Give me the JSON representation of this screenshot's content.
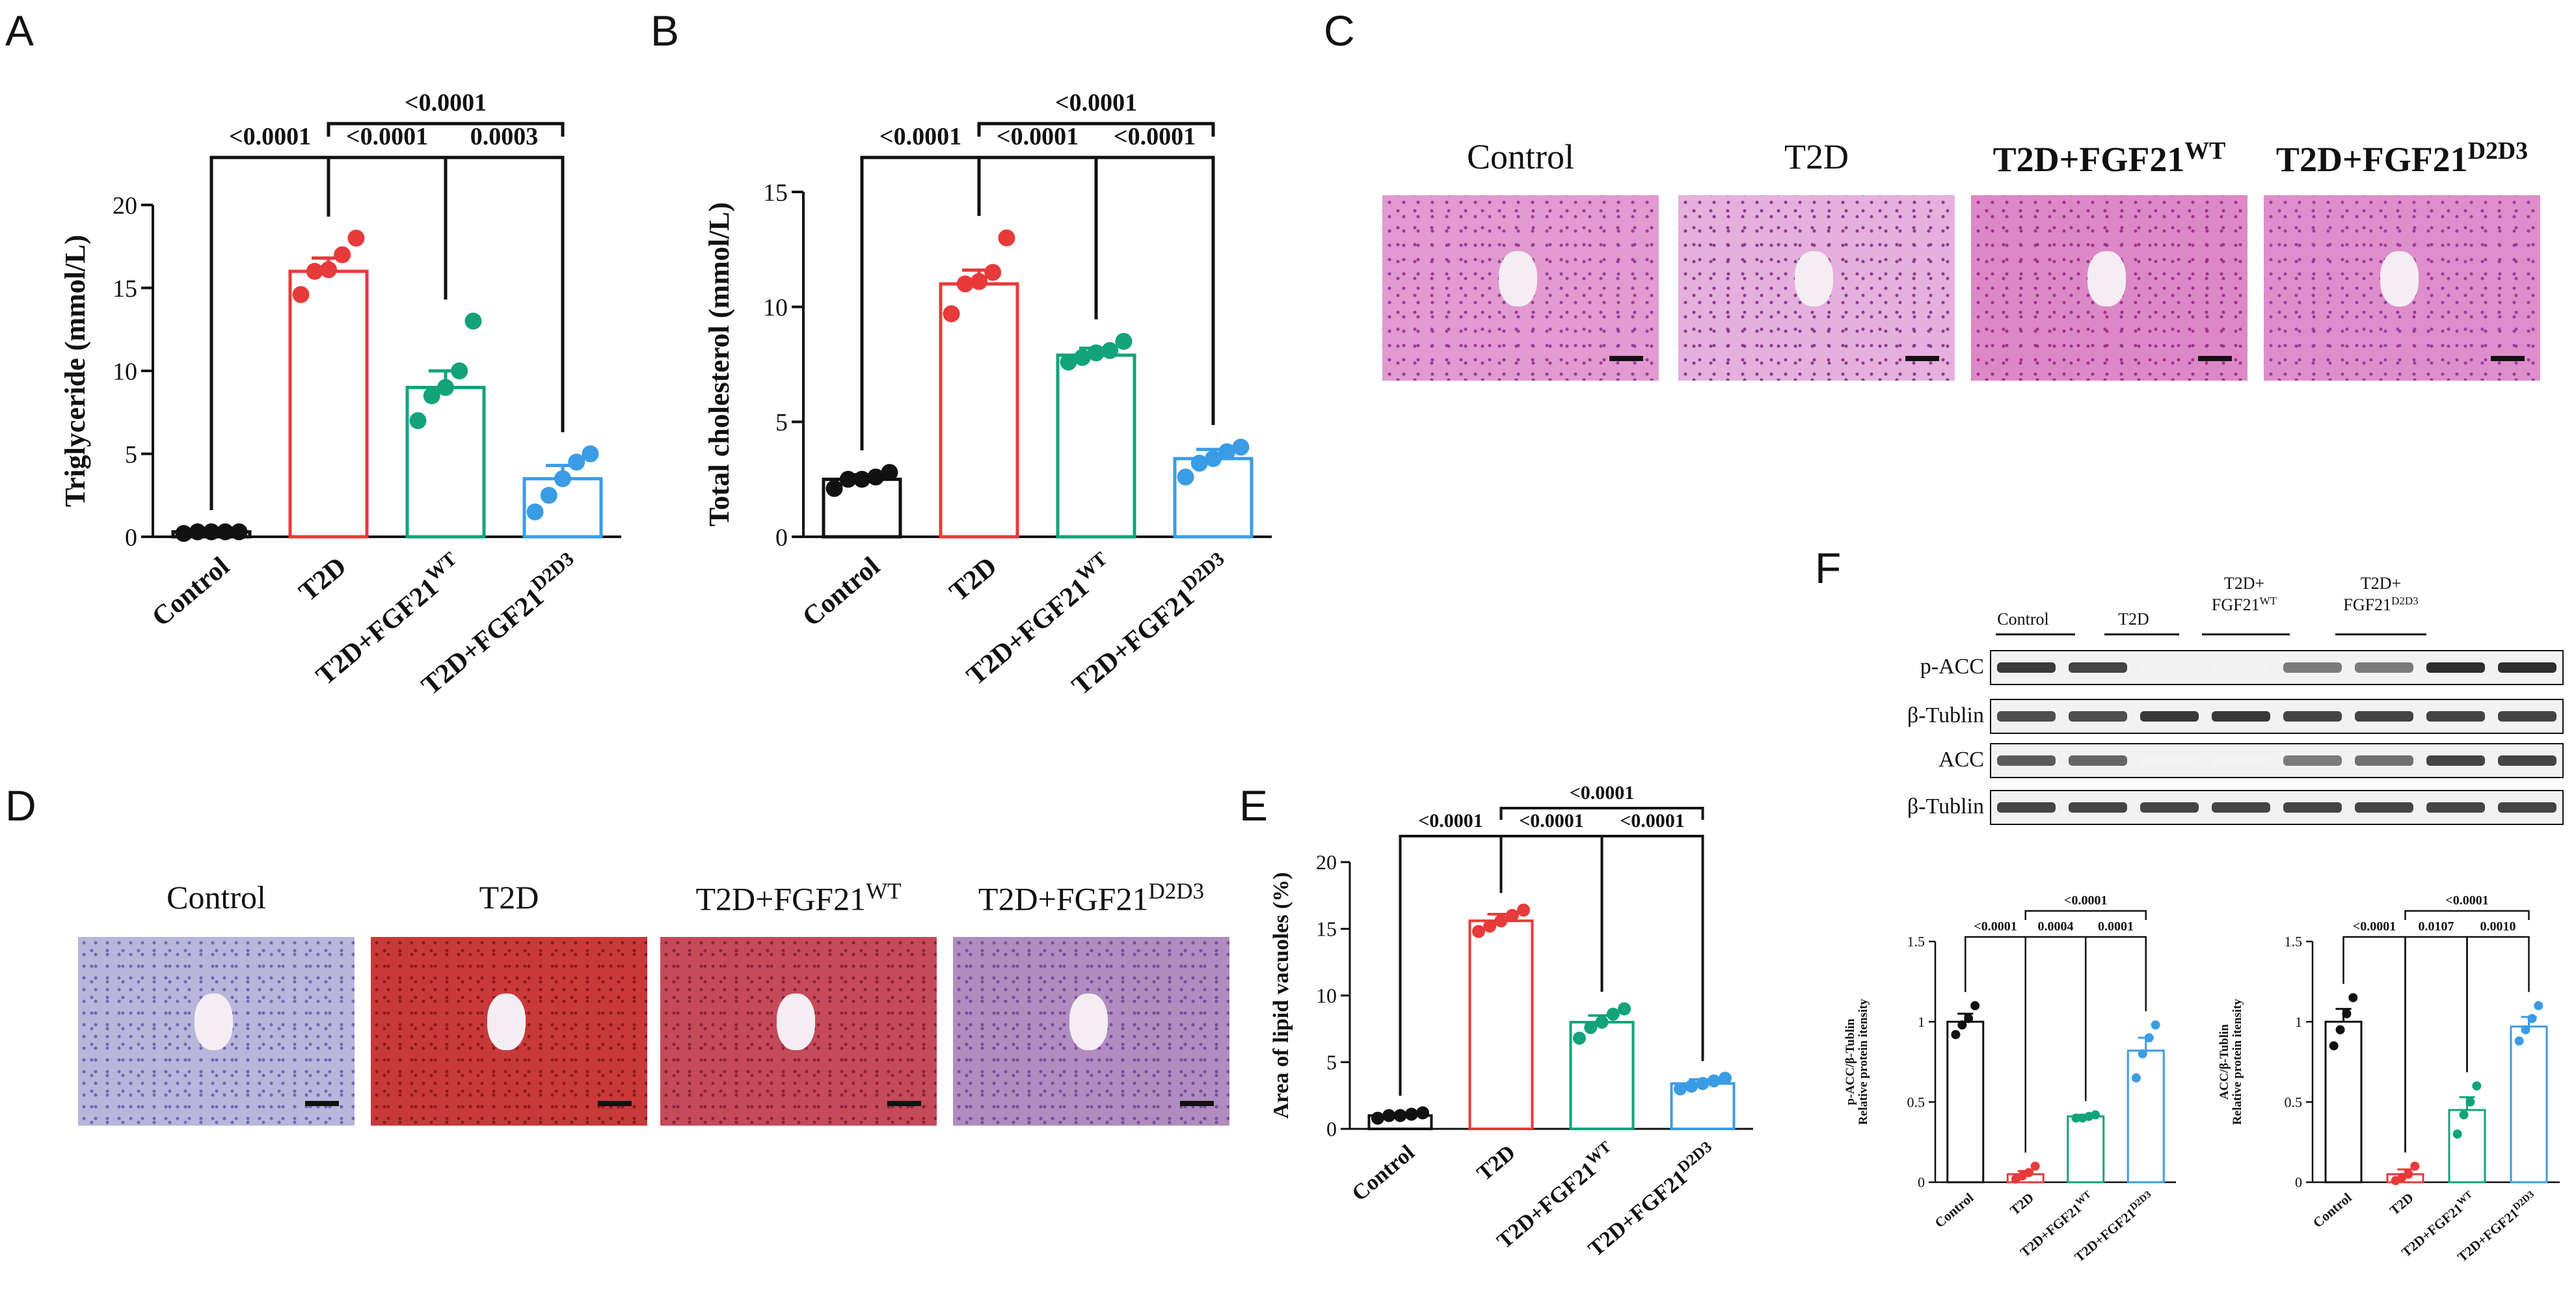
{
  "panel_letters": {
    "a": "A",
    "b": "B",
    "c": "C",
    "d": "D",
    "e": "E",
    "f": "F"
  },
  "colors": {
    "control": "#111111",
    "t2d": "#e83a3a",
    "wt": "#12a37a",
    "d2d3": "#3b9ce6"
  },
  "histology_he": {
    "captions": [
      {
        "base": "Control",
        "sup": ""
      },
      {
        "base": "T2D",
        "sup": ""
      },
      {
        "base": "T2D+FGF21",
        "sup": "WT"
      },
      {
        "base": "T2D+FGF21",
        "sup": "D2D3"
      }
    ]
  },
  "histology_oil": {
    "captions": [
      {
        "base": "Control",
        "sup": ""
      },
      {
        "base": "T2D",
        "sup": ""
      },
      {
        "base": "T2D+FGF21",
        "sup": "WT"
      },
      {
        "base": "T2D+FGF21",
        "sup": "D2D3"
      }
    ]
  },
  "western_blot": {
    "lane_headers": [
      {
        "l1": "Control",
        "l2": ""
      },
      {
        "l1": "T2D",
        "l2": ""
      },
      {
        "l1": "T2D+",
        "l2": "FGF21",
        "sup": "WT"
      },
      {
        "l1": "T2D+",
        "l2": "FGF21",
        "sup": "D2D3"
      }
    ],
    "rows": [
      {
        "label": "p-ACC",
        "bands": [
          0.9,
          0.85,
          0.05,
          0.05,
          0.6,
          0.6,
          0.95,
          0.95
        ]
      },
      {
        "label": "β-Tublin",
        "bands": [
          0.8,
          0.8,
          0.9,
          0.9,
          0.85,
          0.85,
          0.85,
          0.85
        ]
      },
      {
        "label": "ACC",
        "bands": [
          0.75,
          0.7,
          0.05,
          0.05,
          0.6,
          0.65,
          0.85,
          0.85
        ]
      },
      {
        "label": "β-Tublin",
        "bands": [
          0.85,
          0.85,
          0.85,
          0.85,
          0.85,
          0.85,
          0.85,
          0.85
        ]
      }
    ]
  },
  "chart_data": [
    {
      "id": "A",
      "type": "bar",
      "categories": [
        "Control",
        "T2D",
        "T2D+FGF21^WT",
        "T2D+FGF21^D2D3"
      ],
      "values": [
        0.3,
        16.0,
        9.0,
        3.5
      ],
      "sem": [
        0.1,
        0.8,
        1.0,
        0.8
      ],
      "points": [
        [
          0.2,
          0.3,
          0.3,
          0.3,
          0.3
        ],
        [
          14.6,
          16.0,
          16.1,
          17.0,
          18.0
        ],
        [
          7.0,
          8.5,
          9.0,
          10.0,
          13.0
        ],
        [
          1.5,
          2.5,
          3.5,
          4.5,
          5.0
        ]
      ],
      "title": "",
      "xlabel": "",
      "ylabel": "Triglyceride (mmol/L)",
      "ylim": [
        0,
        20
      ],
      "yticks": [
        0,
        5,
        10,
        15,
        20
      ],
      "comparisons": [
        {
          "from": 0,
          "to": 1,
          "label": "<0.0001",
          "level": 1
        },
        {
          "from": 1,
          "to": 2,
          "label": "<0.0001",
          "level": 1
        },
        {
          "from": 2,
          "to": 3,
          "label": "0.0003",
          "level": 1
        },
        {
          "from": 1,
          "to": 3,
          "label": "<0.0001",
          "level": 2
        }
      ]
    },
    {
      "id": "B",
      "type": "bar",
      "categories": [
        "Control",
        "T2D",
        "T2D+FGF21^WT",
        "T2D+FGF21^D2D3"
      ],
      "values": [
        2.5,
        11.0,
        7.9,
        3.4
      ],
      "sem": [
        0.2,
        0.6,
        0.3,
        0.4
      ],
      "points": [
        [
          2.1,
          2.5,
          2.5,
          2.6,
          2.8
        ],
        [
          9.7,
          11.0,
          11.1,
          11.5,
          13.0
        ],
        [
          7.6,
          7.8,
          8.0,
          8.1,
          8.5
        ],
        [
          2.6,
          3.2,
          3.4,
          3.7,
          3.9
        ]
      ],
      "title": "",
      "xlabel": "",
      "ylabel": "Total cholesterol (mmol/L)",
      "ylim": [
        0,
        15
      ],
      "yticks": [
        0,
        5,
        10,
        15
      ],
      "comparisons": [
        {
          "from": 0,
          "to": 1,
          "label": "<0.0001",
          "level": 1
        },
        {
          "from": 1,
          "to": 2,
          "label": "<0.0001",
          "level": 1
        },
        {
          "from": 2,
          "to": 3,
          "label": "<0.0001",
          "level": 1
        },
        {
          "from": 1,
          "to": 3,
          "label": "<0.0001",
          "level": 2
        }
      ]
    },
    {
      "id": "E",
      "type": "bar",
      "categories": [
        "Control",
        "T2D",
        "T2D+FGF21^WT",
        "T2D+FGF21^D2D3"
      ],
      "values": [
        1.0,
        15.6,
        8.0,
        3.4
      ],
      "sem": [
        0.1,
        0.5,
        0.5,
        0.3
      ],
      "points": [
        [
          0.8,
          1.0,
          1.0,
          1.1,
          1.2
        ],
        [
          14.8,
          15.2,
          15.6,
          16.0,
          16.4
        ],
        [
          6.8,
          7.6,
          8.0,
          8.6,
          9.0
        ],
        [
          3.0,
          3.2,
          3.4,
          3.6,
          3.8
        ]
      ],
      "title": "",
      "xlabel": "",
      "ylabel": "Area of lipid vacuoles (%)",
      "ylim": [
        0,
        20
      ],
      "yticks": [
        0,
        5,
        10,
        15,
        20
      ],
      "comparisons": [
        {
          "from": 0,
          "to": 1,
          "label": "<0.0001",
          "level": 1
        },
        {
          "from": 1,
          "to": 2,
          "label": "<0.0001",
          "level": 1
        },
        {
          "from": 2,
          "to": 3,
          "label": "<0.0001",
          "level": 1
        },
        {
          "from": 1,
          "to": 3,
          "label": "<0.0001",
          "level": 2
        }
      ]
    },
    {
      "id": "F1",
      "type": "bar",
      "categories": [
        "Control",
        "T2D",
        "T2D+FGF21^WT",
        "T2D+FGF21^D2D3"
      ],
      "values": [
        1.0,
        0.05,
        0.41,
        0.82
      ],
      "sem": [
        0.05,
        0.02,
        0.01,
        0.08
      ],
      "points": [
        [
          0.92,
          0.98,
          1.02,
          1.1
        ],
        [
          0.02,
          0.04,
          0.06,
          0.1
        ],
        [
          0.4,
          0.4,
          0.41,
          0.42
        ],
        [
          0.65,
          0.8,
          0.9,
          0.98
        ]
      ],
      "title": "",
      "xlabel": "",
      "ylabel": "p-ACC/β-Tublin",
      "ylabel2": "Relative protein itensity",
      "ylim": [
        0,
        1.5
      ],
      "yticks": [
        0.0,
        0.5,
        1.0,
        1.5
      ],
      "comparisons": [
        {
          "from": 0,
          "to": 1,
          "label": "<0.0001",
          "level": 1
        },
        {
          "from": 1,
          "to": 2,
          "label": "0.0004",
          "level": 1
        },
        {
          "from": 2,
          "to": 3,
          "label": "0.0001",
          "level": 1
        },
        {
          "from": 1,
          "to": 3,
          "label": "<0.0001",
          "level": 2
        }
      ]
    },
    {
      "id": "F2",
      "type": "bar",
      "categories": [
        "Control",
        "T2D",
        "T2D+FGF21^WT",
        "T2D+FGF21^D2D3"
      ],
      "values": [
        1.0,
        0.05,
        0.45,
        0.97
      ],
      "sem": [
        0.08,
        0.03,
        0.08,
        0.06
      ],
      "points": [
        [
          0.85,
          0.95,
          1.05,
          1.15
        ],
        [
          0.01,
          0.03,
          0.05,
          0.1
        ],
        [
          0.3,
          0.42,
          0.5,
          0.6
        ],
        [
          0.88,
          0.95,
          1.02,
          1.1
        ]
      ],
      "title": "",
      "xlabel": "",
      "ylabel": "ACC/β-Tublin",
      "ylabel2": "Relative protein itensity",
      "ylim": [
        0,
        1.5
      ],
      "yticks": [
        0.0,
        0.5,
        1.0,
        1.5
      ],
      "comparisons": [
        {
          "from": 0,
          "to": 1,
          "label": "<0.0001",
          "level": 1
        },
        {
          "from": 1,
          "to": 2,
          "label": "0.0107",
          "level": 1
        },
        {
          "from": 2,
          "to": 3,
          "label": "0.0010",
          "level": 1
        },
        {
          "from": 1,
          "to": 3,
          "label": "<0.0001",
          "level": 2
        }
      ]
    }
  ]
}
